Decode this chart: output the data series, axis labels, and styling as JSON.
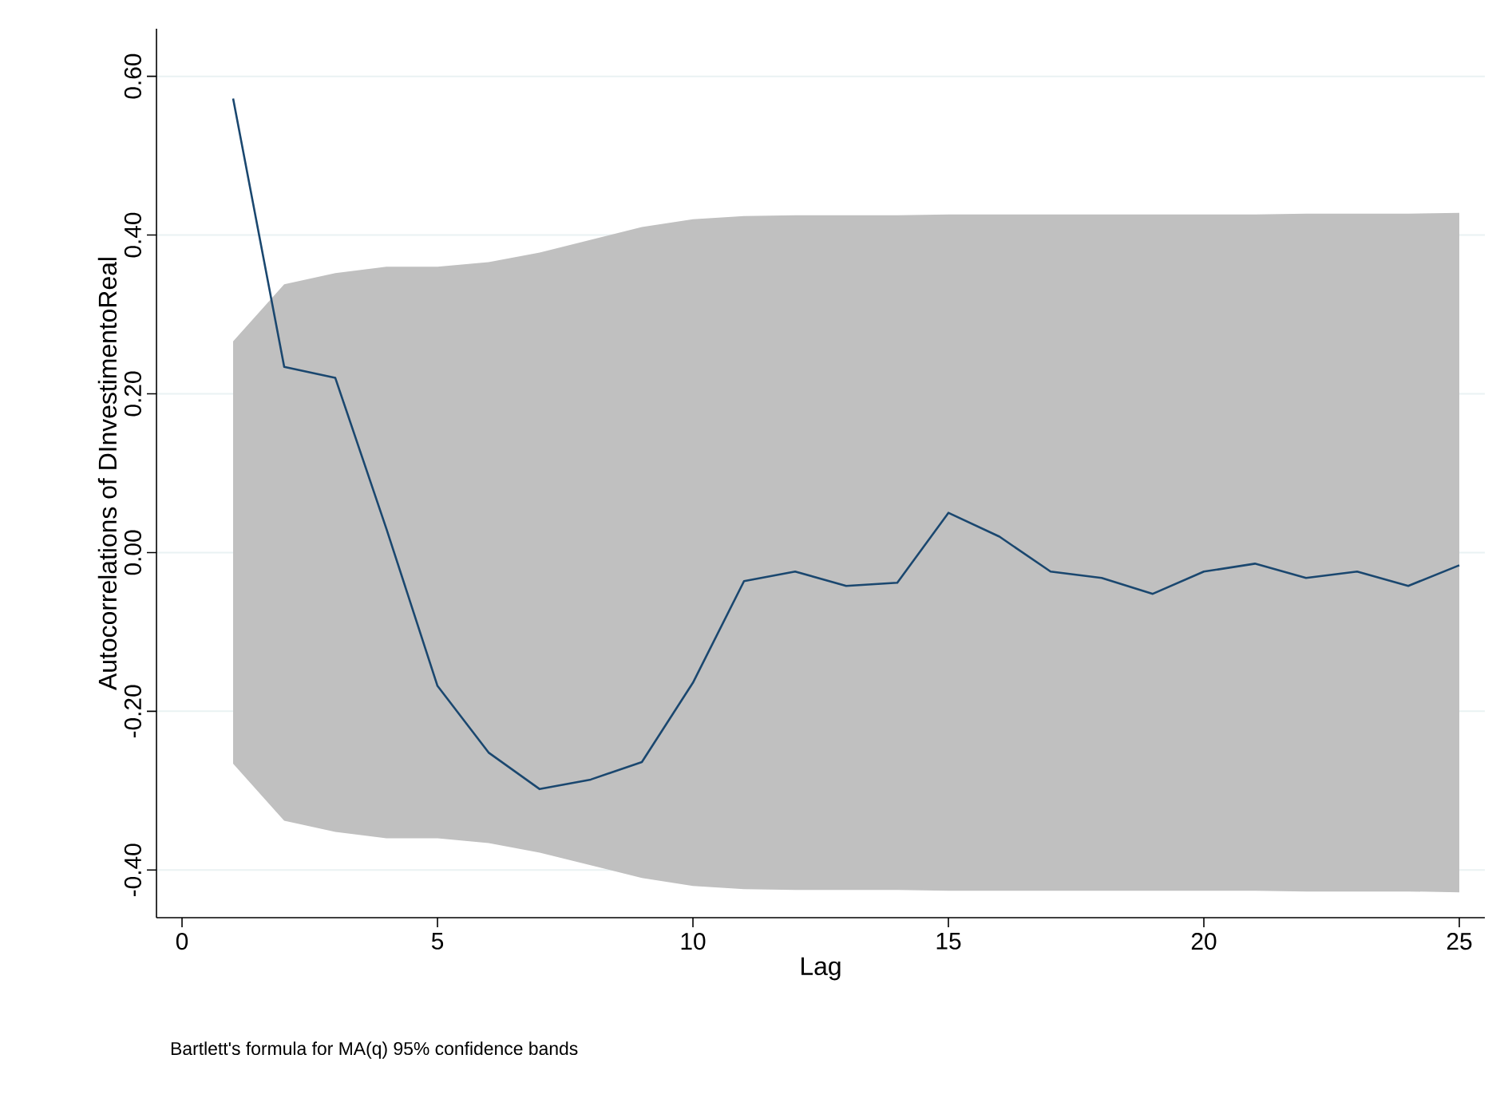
{
  "chart_data": {
    "type": "line",
    "xlabel": "Lag",
    "ylabel": "Autocorrelations of DInvestimentoReal",
    "x": [
      1,
      2,
      3,
      4,
      5,
      6,
      7,
      8,
      9,
      10,
      11,
      12,
      13,
      14,
      15,
      16,
      17,
      18,
      19,
      20,
      21,
      22,
      23,
      24,
      25
    ],
    "series": [
      {
        "color": "#1a476f",
        "values": [
          0.572,
          0.234,
          0.22,
          0.03,
          -0.168,
          -0.252,
          -0.298,
          -0.286,
          -0.264,
          -0.164,
          -0.036,
          -0.024,
          -0.042,
          -0.038,
          0.05,
          0.02,
          -0.024,
          -0.032,
          -0.052,
          -0.024,
          -0.014,
          -0.032,
          -0.024,
          -0.042,
          -0.016
        ],
        "upper": [
          0.266,
          0.338,
          0.352,
          0.36,
          0.36,
          0.366,
          0.378,
          0.394,
          0.41,
          0.42,
          0.424,
          0.425,
          0.425,
          0.425,
          0.426,
          0.426,
          0.426,
          0.426,
          0.426,
          0.426,
          0.426,
          0.427,
          0.427,
          0.427,
          0.428
        ],
        "lower": [
          -0.266,
          -0.338,
          -0.352,
          -0.36,
          -0.36,
          -0.366,
          -0.378,
          -0.394,
          -0.41,
          -0.42,
          -0.424,
          -0.425,
          -0.425,
          -0.425,
          -0.426,
          -0.426,
          -0.426,
          -0.426,
          -0.426,
          -0.426,
          -0.426,
          -0.427,
          -0.427,
          -0.427,
          -0.428
        ]
      }
    ],
    "xlim": [
      -0.5,
      25.5
    ],
    "ylim": [
      -0.46,
      0.66
    ],
    "xticks": [
      0,
      5,
      10,
      15,
      20,
      25
    ],
    "yticks": [
      {
        "value": -0.4,
        "label": "-0.40"
      },
      {
        "value": -0.2,
        "label": "-0.20"
      },
      {
        "value": 0,
        "label": "0.00"
      },
      {
        "value": 0.2,
        "label": "0.20"
      },
      {
        "value": 0.4,
        "label": "0.40"
      },
      {
        "value": 0.6,
        "label": "0.60"
      }
    ],
    "grid": "y",
    "marker": "none",
    "line_style": "solid",
    "annotations": [
      "Bartlett's formula for MA(q) 95% confidence bands"
    ]
  }
}
